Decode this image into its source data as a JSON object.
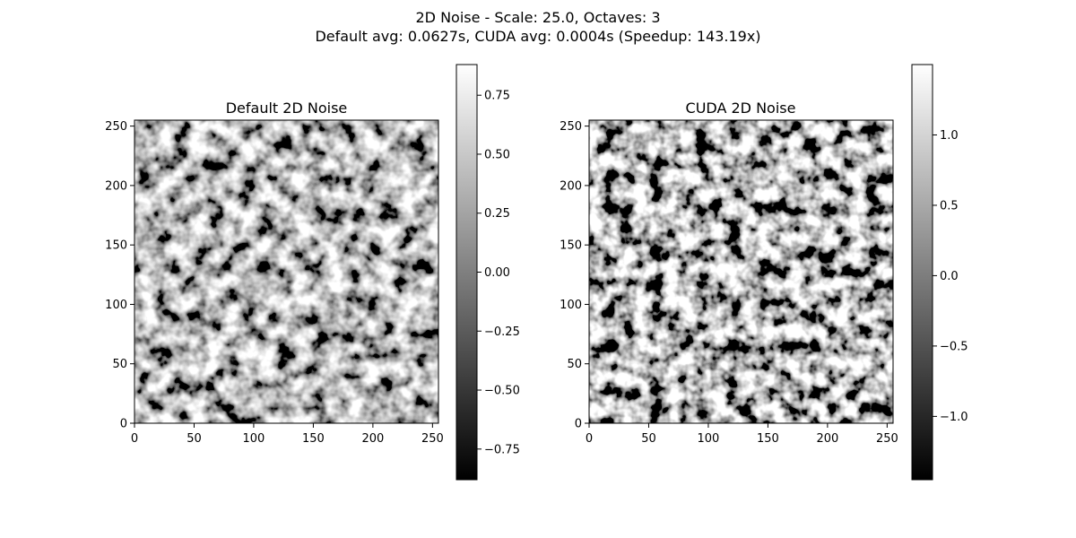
{
  "figure": {
    "title_line1": "2D Noise - Scale: 25.0, Octaves: 3",
    "title_line2": "Default avg: 0.0627s, CUDA avg: 0.0004s (Speedup: 143.19x)"
  },
  "chart_data": [
    {
      "type": "heatmap",
      "title": "Default 2D Noise",
      "grid_size": [
        256,
        256
      ],
      "colormap": "gray",
      "xlim": [
        0,
        255
      ],
      "ylim": [
        0,
        255
      ],
      "xticks": [
        0,
        50,
        100,
        150,
        200,
        250
      ],
      "yticks": [
        0,
        50,
        100,
        150,
        200,
        250
      ],
      "colorbar": {
        "range": [
          -0.88,
          0.88
        ],
        "ticks": [
          -0.75,
          -0.5,
          -0.25,
          0.0,
          0.25,
          0.5,
          0.75
        ],
        "tick_labels": [
          "−0.75",
          "−0.50",
          "−0.25",
          "0.00",
          "0.25",
          "0.50",
          "0.75"
        ]
      }
    },
    {
      "type": "heatmap",
      "title": "CUDA 2D Noise",
      "grid_size": [
        256,
        256
      ],
      "colormap": "gray",
      "xlim": [
        0,
        255
      ],
      "ylim": [
        0,
        255
      ],
      "xticks": [
        0,
        50,
        100,
        150,
        200,
        250
      ],
      "yticks": [
        0,
        50,
        100,
        150,
        200,
        250
      ],
      "colorbar": {
        "range": [
          -1.45,
          1.5
        ],
        "ticks": [
          -1.0,
          -0.5,
          0.0,
          0.5,
          1.0
        ],
        "tick_labels": [
          "−1.0",
          "−0.5",
          "0.0",
          "0.5",
          "1.0"
        ]
      }
    }
  ]
}
